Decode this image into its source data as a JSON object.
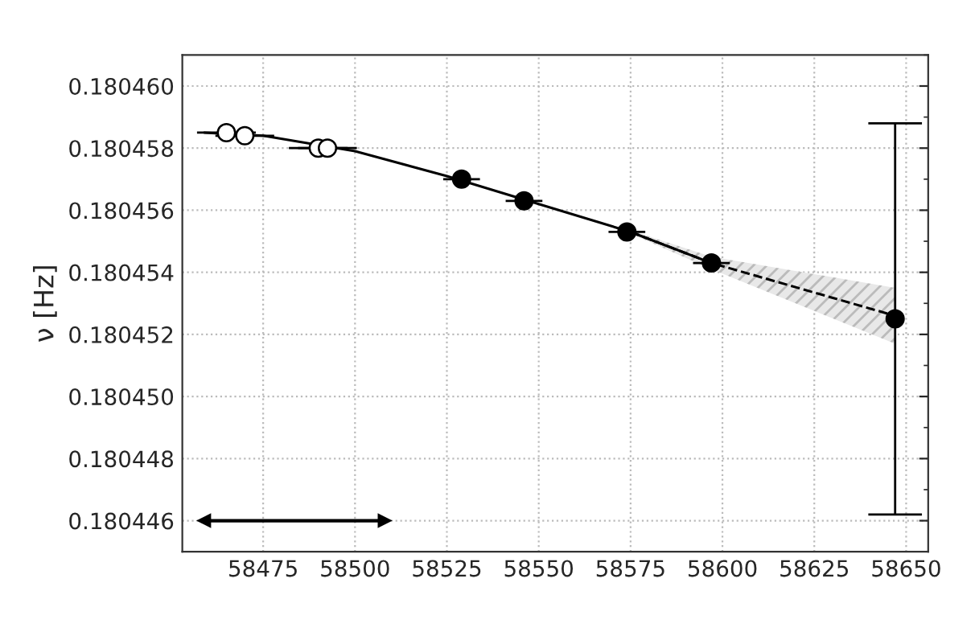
{
  "chart_data": {
    "type": "scatter",
    "ylabel": "ν [Hz]",
    "xlim": [
      58453,
      58656
    ],
    "xticks": [
      58475,
      58500,
      58525,
      58550,
      58575,
      58600,
      58625,
      58650
    ],
    "ylim": [
      0.180445,
      0.18046
    ],
    "yticks": [
      {
        "value": 0.180446,
        "label": "0.180446"
      },
      {
        "value": 0.180448,
        "label": "0.180448"
      },
      {
        "value": 0.18045,
        "label": "0.180450"
      },
      {
        "value": 0.180452,
        "label": "0.180452"
      },
      {
        "value": 0.180454,
        "label": "0.180454"
      },
      {
        "value": 0.180456,
        "label": "0.180456"
      },
      {
        "value": 0.180458,
        "label": "0.180458"
      },
      {
        "value": 0.18046,
        "label": "0.180460"
      }
    ],
    "grid": true,
    "marker": "circle",
    "series": [
      {
        "type": "line",
        "color": "#000000",
        "line_style": "solid",
        "marker": "none",
        "x": [
          58459,
          58475,
          58500,
          58525,
          58550,
          58575,
          58597
        ],
        "values": [
          0.1804585,
          0.1804584,
          0.1804579,
          0.1804571,
          0.1804562,
          0.1804553,
          0.1804543
        ]
      },
      {
        "type": "line",
        "color": "#000000",
        "line_style": "dashed",
        "marker": "none",
        "x": [
          58575,
          58597,
          58647
        ],
        "values": [
          0.1804553,
          0.1804543,
          0.1804526
        ],
        "lower": [
          0.18045525,
          0.1804541,
          0.1804517
        ],
        "upper": [
          0.18045535,
          0.1804545,
          0.1804535
        ]
      },
      {
        "color": "#ffffff",
        "x": [
          58465,
          58470,
          58490,
          58492.5
        ],
        "values": [
          0.1804585,
          0.1804584,
          0.180458,
          0.180458
        ],
        "xerrors": [
          8,
          8,
          8,
          8
        ]
      },
      {
        "color": "#000000",
        "x": [
          58529,
          58546,
          58574,
          58597,
          58647
        ],
        "values": [
          0.180457,
          0.1804563,
          0.1804553,
          0.1804543,
          0.1804525
        ],
        "xerrors": [
          5,
          5,
          5,
          5,
          null
        ],
        "errors": [
          null,
          null,
          null,
          null,
          [
            0.1804462,
            0.1804588
          ]
        ]
      },
      {
        "type": "line",
        "color": "#000000",
        "line_style": "solid",
        "marker": "triangle",
        "x": [
          58459,
          58508
        ],
        "values": [
          0.180446,
          0.180446
        ]
      }
    ]
  }
}
